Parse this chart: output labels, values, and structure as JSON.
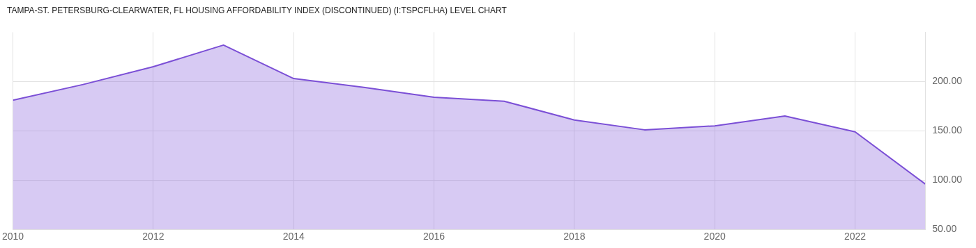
{
  "chart_data": {
    "type": "area",
    "title": "TAMPA-ST. PETERSBURG-CLEARWATER, FL HOUSING AFFORDABILITY INDEX (DISCONTINUED) (I:TSPCFLHA) LEVEL CHART",
    "x": [
      2010,
      2011,
      2012,
      2013,
      2014,
      2015,
      2016,
      2017,
      2018,
      2019,
      2020,
      2021,
      2022,
      2023
    ],
    "series": [
      {
        "color": "#7b4fd6",
        "values": [
          181,
          197,
          215,
          237,
          203,
          194,
          184,
          180,
          161,
          151,
          155,
          165,
          149,
          96
        ]
      }
    ],
    "xlim": [
      2010,
      2023
    ],
    "xticks": [
      2010,
      2012,
      2014,
      2016,
      2018,
      2020,
      2022
    ],
    "ylim": [
      50,
      250
    ],
    "yticks": [
      {
        "value": 50,
        "label": "50.00"
      },
      {
        "value": 100,
        "label": "100.00"
      },
      {
        "value": 150,
        "label": "150.00"
      },
      {
        "value": 200,
        "label": "200.00"
      }
    ],
    "grid": true,
    "legend": false
  }
}
